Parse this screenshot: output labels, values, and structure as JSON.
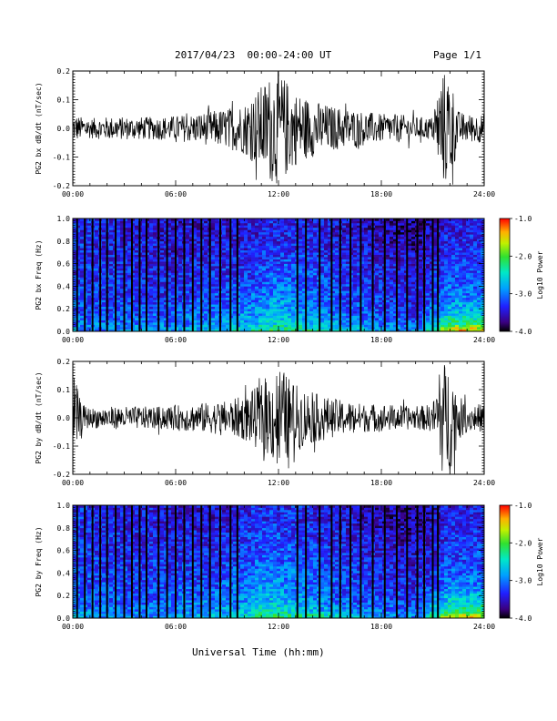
{
  "header": {
    "title": "2017/04/23  00:00-24:00 UT",
    "page": "Page 1/1"
  },
  "footer": {
    "xlabel": "Universal Time (hh:mm)"
  },
  "colors": {
    "background": "#ffffff",
    "trace": "#000000",
    "spectrogram_low": "#200090",
    "spectrogram_high": "#ff0000"
  },
  "chart_data": [
    {
      "type": "line",
      "title": "",
      "xlabel": "",
      "ylabel": "PG2 bx dB/dt (nT/sec)",
      "xlim": [
        0,
        24
      ],
      "ylim": [
        -0.2,
        0.2
      ],
      "x_ticks": [
        "00:00",
        "06:00",
        "12:00",
        "18:00",
        "24:00"
      ],
      "y_ticks": [
        "-0.2",
        "-0.1",
        "0.0",
        "0.1",
        "0.2"
      ],
      "envelope": {
        "hours": [
          0,
          0.5,
          1,
          2,
          3,
          4,
          5,
          6,
          7,
          8,
          9,
          10,
          10.5,
          11,
          11.5,
          12,
          12.5,
          13,
          14,
          15,
          16,
          17,
          18,
          19,
          20,
          21,
          21.5,
          22,
          22.5,
          23,
          24
        ],
        "amplitude": [
          0.05,
          0.04,
          0.035,
          0.04,
          0.04,
          0.04,
          0.04,
          0.045,
          0.05,
          0.06,
          0.07,
          0.09,
          0.12,
          0.15,
          0.19,
          0.2,
          0.17,
          0.13,
          0.1,
          0.08,
          0.07,
          0.06,
          0.05,
          0.05,
          0.04,
          0.04,
          0.2,
          0.2,
          0.06,
          0.05,
          0.05
        ]
      }
    },
    {
      "type": "heatmap",
      "title": "",
      "xlabel": "",
      "ylabel": "PG2 bx Freq (Hz)",
      "colorbar_label": "Log10 Power",
      "xlim": [
        0,
        24
      ],
      "ylim": [
        0,
        1.0
      ],
      "clim": [
        -4.0,
        -1.0
      ],
      "x_ticks": [
        "00:00",
        "06:00",
        "12:00",
        "18:00",
        "24:00"
      ],
      "y_ticks": [
        "0.0",
        "0.2",
        "0.4",
        "0.6",
        "0.8",
        "1.0"
      ],
      "colorbar_ticks": [
        "-1.0",
        "-2.0",
        "-3.0",
        "-4.0"
      ],
      "gap_hours": [
        0.25,
        0.7,
        1.15,
        1.6,
        2.0,
        2.5,
        3.0,
        3.45,
        3.9,
        4.3,
        5.0,
        5.5,
        6.0,
        6.5,
        7.0,
        7.5,
        8.0,
        8.6,
        9.2,
        9.6,
        13.1,
        13.6,
        14.4,
        15.1,
        15.6,
        16.2,
        16.8,
        17.5,
        18.2,
        18.9,
        19.5,
        20.1,
        20.5,
        21.0,
        21.3
      ],
      "rows": [
        {
          "freq": 0.02,
          "values": [
            -2.9,
            -3.0,
            -2.9,
            -2.8,
            -2.7,
            -2.5,
            -2.3,
            -2.2,
            -2.3,
            -2.6,
            -2.8,
            -3.0,
            -1.5
          ]
        },
        {
          "freq": 0.06,
          "values": [
            -3.0,
            -3.0,
            -3.0,
            -3.0,
            -2.9,
            -2.8,
            -2.6,
            -2.5,
            -2.7,
            -2.9,
            -3.0,
            -3.1,
            -2.2
          ]
        },
        {
          "freq": 0.15,
          "values": [
            -3.2,
            -3.2,
            -3.2,
            -3.1,
            -3.1,
            -2.9,
            -2.8,
            -2.7,
            -2.9,
            -3.1,
            -3.2,
            -3.3,
            -2.6
          ]
        },
        {
          "freq": 0.3,
          "values": [
            -3.2,
            -3.3,
            -3.3,
            -3.3,
            -3.2,
            -3.1,
            -3.0,
            -2.9,
            -3.1,
            -3.2,
            -3.3,
            -3.4,
            -3.0
          ]
        },
        {
          "freq": 0.5,
          "values": [
            -3.3,
            -3.3,
            -3.4,
            -3.4,
            -3.3,
            -3.3,
            -3.2,
            -3.1,
            -3.2,
            -3.3,
            -3.4,
            -3.5,
            -3.2
          ]
        },
        {
          "freq": 0.7,
          "values": [
            -3.3,
            -3.4,
            -3.4,
            -3.5,
            -3.4,
            -3.4,
            -3.3,
            -3.3,
            -3.3,
            -3.4,
            -3.5,
            -3.6,
            -3.3
          ]
        },
        {
          "freq": 0.9,
          "values": [
            -3.3,
            -3.4,
            -3.5,
            -3.5,
            -3.5,
            -3.5,
            -3.4,
            -3.4,
            -3.4,
            -3.5,
            -3.6,
            -3.7,
            -3.4
          ]
        }
      ],
      "row_hours": [
        0,
        2,
        4,
        6,
        8,
        10,
        11,
        12,
        14,
        16,
        18,
        20,
        22
      ]
    },
    {
      "type": "line",
      "title": "",
      "xlabel": "",
      "ylabel": "PG2 by dB/dt (nT/sec)",
      "xlim": [
        0,
        24
      ],
      "ylim": [
        -0.2,
        0.2
      ],
      "x_ticks": [
        "00:00",
        "06:00",
        "12:00",
        "18:00",
        "24:00"
      ],
      "y_ticks": [
        "-0.2",
        "-0.1",
        "0.0",
        "0.1",
        "0.2"
      ],
      "envelope": {
        "hours": [
          0,
          0.2,
          0.5,
          1,
          2,
          3,
          4,
          5,
          6,
          7,
          8,
          9,
          10,
          10.5,
          11,
          11.5,
          12,
          12.5,
          13,
          14,
          15,
          16,
          17,
          18,
          19,
          20,
          21,
          21.5,
          22,
          22.5,
          23,
          24
        ],
        "amplitude": [
          0.18,
          0.12,
          0.05,
          0.035,
          0.04,
          0.04,
          0.04,
          0.04,
          0.045,
          0.05,
          0.055,
          0.06,
          0.08,
          0.1,
          0.12,
          0.14,
          0.2,
          0.15,
          0.12,
          0.09,
          0.07,
          0.06,
          0.05,
          0.05,
          0.045,
          0.04,
          0.05,
          0.2,
          0.2,
          0.08,
          0.05,
          0.05
        ]
      }
    },
    {
      "type": "heatmap",
      "title": "",
      "xlabel": "",
      "ylabel": "PG2 by Freq (Hz)",
      "colorbar_label": "Log10 Power",
      "xlim": [
        0,
        24
      ],
      "ylim": [
        0,
        1.0
      ],
      "clim": [
        -4.0,
        -1.0
      ],
      "x_ticks": [
        "00:00",
        "06:00",
        "12:00",
        "18:00",
        "24:00"
      ],
      "y_ticks": [
        "0.0",
        "0.2",
        "0.4",
        "0.6",
        "0.8",
        "1.0"
      ],
      "colorbar_ticks": [
        "-1.0",
        "-2.0",
        "-3.0",
        "-4.0"
      ],
      "gap_hours": [
        0.25,
        0.7,
        1.15,
        1.6,
        2.0,
        2.5,
        3.0,
        3.45,
        3.9,
        4.3,
        5.0,
        5.5,
        6.0,
        6.5,
        7.0,
        7.5,
        8.0,
        8.6,
        9.2,
        9.6,
        13.1,
        13.6,
        14.4,
        15.1,
        15.6,
        16.2,
        16.8,
        17.5,
        18.2,
        18.9,
        19.5,
        20.1,
        20.5,
        21.0,
        21.3
      ],
      "rows": [
        {
          "freq": 0.02,
          "values": [
            -2.8,
            -2.9,
            -2.9,
            -2.8,
            -2.7,
            -2.5,
            -2.3,
            -2.2,
            -2.3,
            -2.6,
            -2.8,
            -3.0,
            -1.6
          ]
        },
        {
          "freq": 0.06,
          "values": [
            -2.9,
            -3.0,
            -3.0,
            -3.0,
            -2.9,
            -2.7,
            -2.5,
            -2.5,
            -2.7,
            -2.9,
            -3.0,
            -3.1,
            -2.2
          ]
        },
        {
          "freq": 0.15,
          "values": [
            -3.1,
            -3.1,
            -3.2,
            -3.1,
            -3.0,
            -2.9,
            -2.7,
            -2.7,
            -2.9,
            -3.1,
            -3.2,
            -3.3,
            -2.6
          ]
        },
        {
          "freq": 0.3,
          "values": [
            -3.2,
            -3.2,
            -3.3,
            -3.2,
            -3.2,
            -3.0,
            -2.9,
            -2.9,
            -3.1,
            -3.2,
            -3.3,
            -3.4,
            -3.0
          ]
        },
        {
          "freq": 0.5,
          "values": [
            -3.2,
            -3.3,
            -3.3,
            -3.3,
            -3.3,
            -3.2,
            -3.1,
            -3.1,
            -3.2,
            -3.3,
            -3.4,
            -3.5,
            -3.2
          ]
        },
        {
          "freq": 0.7,
          "values": [
            -3.3,
            -3.3,
            -3.4,
            -3.4,
            -3.4,
            -3.3,
            -3.2,
            -3.2,
            -3.3,
            -3.4,
            -3.5,
            -3.6,
            -3.3
          ]
        },
        {
          "freq": 0.9,
          "values": [
            -3.3,
            -3.4,
            -3.4,
            -3.5,
            -3.5,
            -3.4,
            -3.3,
            -3.3,
            -3.4,
            -3.5,
            -3.6,
            -3.7,
            -3.4
          ]
        }
      ],
      "row_hours": [
        0,
        2,
        4,
        6,
        8,
        10,
        11,
        12,
        14,
        16,
        18,
        20,
        22
      ]
    }
  ]
}
